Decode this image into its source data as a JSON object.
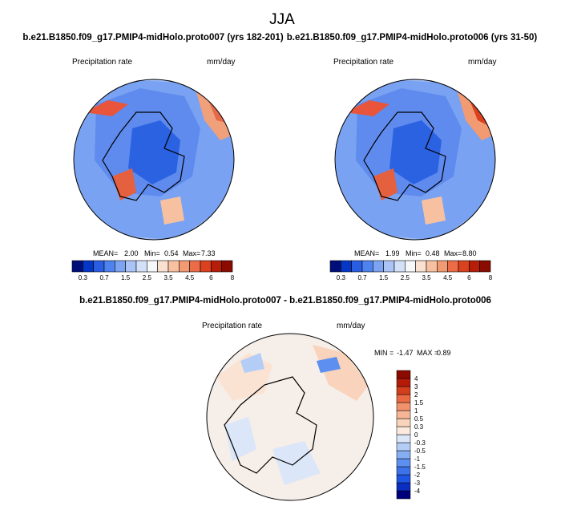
{
  "figure": {
    "season_title": "JJA"
  },
  "chart_data": [
    {
      "type": "heatmap",
      "projection": "north-polar-stereographic",
      "title": "b.e21.B1850.f09_g17.PMIP4-midHolo.proto007 (yrs 182-201)",
      "variable": "Precipitation rate",
      "units": "mm/day",
      "stats": {
        "mean": "2.00",
        "min": "0.54",
        "max": "7.33"
      },
      "stats_labels": {
        "mean": "MEAN=",
        "min": "Min=",
        "max": "Max="
      },
      "colorbar": {
        "orientation": "horizontal",
        "levels": [
          "0.3",
          "0.7",
          "1.5",
          "2.5",
          "3.5",
          "4.5",
          "6",
          "8"
        ],
        "colors": [
          "#000e7a",
          "#0537c6",
          "#2a5ee2",
          "#4e82ee",
          "#7da4f3",
          "#abc4f6",
          "#d3e1f8",
          "#f6f7f8",
          "#fae0cf",
          "#f7c1a1",
          "#f29a72",
          "#eb6c46",
          "#d9411f",
          "#b61e0a",
          "#8a0b00"
        ]
      }
    },
    {
      "type": "heatmap",
      "projection": "north-polar-stereographic",
      "title": "b.e21.B1850.f09_g17.PMIP4-midHolo.proto006 (yrs 31-50)",
      "variable": "Precipitation rate",
      "units": "mm/day",
      "stats": {
        "mean": "1.99",
        "min": "0.48",
        "max": "8.80"
      },
      "stats_labels": {
        "mean": "MEAN=",
        "min": "Min=",
        "max": "Max="
      },
      "colorbar": {
        "orientation": "horizontal",
        "levels": [
          "0.3",
          "0.7",
          "1.5",
          "2.5",
          "3.5",
          "4.5",
          "6",
          "8"
        ],
        "colors": [
          "#000e7a",
          "#0537c6",
          "#2a5ee2",
          "#4e82ee",
          "#7da4f3",
          "#abc4f6",
          "#d3e1f8",
          "#f6f7f8",
          "#fae0cf",
          "#f7c1a1",
          "#f29a72",
          "#eb6c46",
          "#d9411f",
          "#b61e0a",
          "#8a0b00"
        ]
      }
    },
    {
      "type": "heatmap",
      "projection": "north-polar-stereographic",
      "title": "b.e21.B1850.f09_g17.PMIP4-midHolo.proto007 - b.e21.B1850.f09_g17.PMIP4-midHolo.proto006",
      "variable": "Precipitation rate",
      "units": "mm/day",
      "stats": {
        "min": "-1.47",
        "max": "0.89"
      },
      "stats_labels": {
        "min": "MIN =",
        "max": "MAX ="
      },
      "colorbar": {
        "orientation": "vertical",
        "levels": [
          "-4",
          "-3",
          "-2",
          "-1.5",
          "-1",
          "-0.5",
          "-0.3",
          "0",
          "0.3",
          "0.5",
          "1",
          "1.5",
          "2",
          "3",
          "4"
        ],
        "colors": [
          "#00007f",
          "#0a2ec2",
          "#1f55e3",
          "#3d72ea",
          "#5d8ff0",
          "#86aef3",
          "#b4cdf6",
          "#dbe6f8",
          "#fbe9de",
          "#f9d3bb",
          "#f6b595",
          "#f2926c",
          "#ea6a43",
          "#d33e1d",
          "#b51a08",
          "#8c0a00"
        ]
      }
    }
  ]
}
